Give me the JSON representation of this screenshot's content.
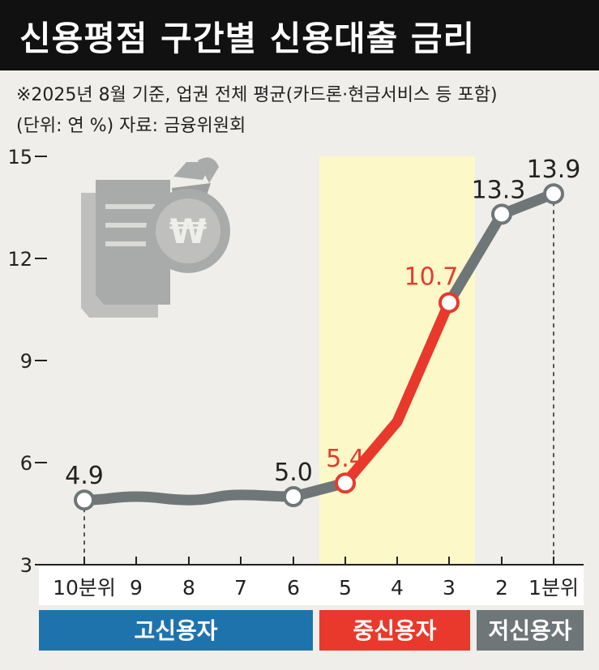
{
  "title": "신용평점 구간별 신용대출 금리",
  "note_line1": "※2025년 8월 기준, 업권 전체 평균(카드론·현금서비스 등 포함)",
  "note_line2": "(단위: 연 %) 자료: 금융위원회",
  "colors": {
    "background": "#efeeea",
    "title_bg": "#111111",
    "gray_line": "#6f7678",
    "red_line": "#e8392c",
    "highlight": "#fdf8c8",
    "low_bar": "#1f73ad",
    "mid_bar": "#e8392c",
    "high_bar": "#6f7678"
  },
  "chart_data": {
    "type": "line",
    "categories": [
      "10분위",
      "9",
      "8",
      "7",
      "6",
      "5",
      "4",
      "3",
      "2",
      "1분위"
    ],
    "values": [
      4.9,
      5.0,
      4.9,
      5.05,
      5.0,
      5.4,
      7.2,
      10.7,
      13.3,
      13.9
    ],
    "data_labels": [
      {
        "index": 0,
        "text": "4.9"
      },
      {
        "index": 4,
        "text": "5.0"
      },
      {
        "index": 5,
        "text": "5.4"
      },
      {
        "index": 7,
        "text": "10.7"
      },
      {
        "index": 8,
        "text": "13.3"
      },
      {
        "index": 9,
        "text": "13.9"
      }
    ],
    "marker_indices": [
      0,
      4,
      5,
      7,
      8,
      9
    ],
    "highlight_range": [
      5,
      7
    ],
    "yticks": [
      3,
      6,
      9,
      12,
      15
    ],
    "ylim": [
      3,
      15
    ],
    "groups": [
      {
        "name": "고신용자",
        "start": 0,
        "end": 4,
        "color": "#1f73ad"
      },
      {
        "name": "중신용자",
        "start": 5,
        "end": 7,
        "color": "#e8392c"
      },
      {
        "name": "저신용자",
        "start": 8,
        "end": 9,
        "color": "#6f7678"
      }
    ]
  }
}
